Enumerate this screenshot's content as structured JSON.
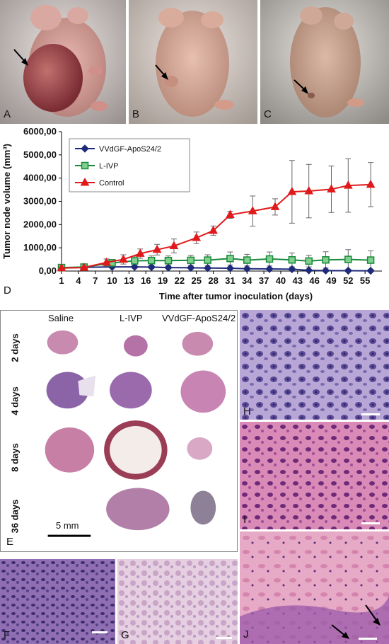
{
  "panel_labels": {
    "a": "A",
    "b": "B",
    "c": "C",
    "d": "D",
    "e": "E",
    "f": "F",
    "g": "G",
    "h": "H",
    "i": "I",
    "j": "J"
  },
  "panel_e": {
    "columns": [
      "Saline",
      "L-IVP",
      "VVdGF-ApoS24/2"
    ],
    "rows": [
      "2 days",
      "4 days",
      "8 days",
      "36 days"
    ],
    "scale_bar": "5 mm"
  },
  "colors": {
    "vvdgf": "#1f2a7a",
    "livp": "#1a8a3a",
    "control": "#e0191b",
    "error": "#666666"
  },
  "chart_data": {
    "type": "line",
    "xlabel": "Time after tumor inoculation (days)",
    "ylabel": "Tumor node volume (mm³)",
    "ylim": [
      0,
      6000
    ],
    "xlim": [
      1,
      58
    ],
    "x_ticks": [
      1,
      4,
      7,
      10,
      13,
      16,
      19,
      22,
      25,
      28,
      31,
      34,
      37,
      40,
      43,
      46,
      49,
      52,
      55
    ],
    "y_ticks": [
      0,
      1000,
      2000,
      3000,
      4000,
      5000,
      6000
    ],
    "y_tick_labels": [
      "0,00",
      "1000,00",
      "2000,00",
      "3000,00",
      "4000,00",
      "5000,00",
      "6000,00"
    ],
    "legend_position": "top-left",
    "series": [
      {
        "name": "VVdGF-ApoS24/2",
        "marker": "diamond",
        "x": [
          1,
          5,
          10,
          14,
          17,
          20,
          24,
          27,
          31,
          34,
          38,
          42,
          45,
          48,
          52,
          56
        ],
        "values": [
          150,
          160,
          180,
          180,
          170,
          150,
          140,
          130,
          120,
          100,
          90,
          80,
          30,
          20,
          15,
          10
        ],
        "errors": [
          40,
          40,
          50,
          60,
          60,
          50,
          50,
          40,
          40,
          40,
          30,
          30,
          20,
          10,
          10,
          10
        ]
      },
      {
        "name": "L-IVP",
        "marker": "square",
        "x": [
          1,
          5,
          10,
          14,
          17,
          20,
          24,
          27,
          31,
          34,
          38,
          42,
          45,
          48,
          52,
          56
        ],
        "values": [
          150,
          170,
          350,
          440,
          450,
          450,
          460,
          470,
          540,
          470,
          520,
          480,
          430,
          480,
          500,
          470
        ],
        "errors": [
          60,
          80,
          150,
          200,
          200,
          200,
          220,
          230,
          280,
          250,
          300,
          300,
          250,
          350,
          420,
          400
        ]
      },
      {
        "name": "Control",
        "marker": "triangle",
        "x": [
          1,
          5,
          9,
          12,
          15,
          18,
          21,
          25,
          28,
          31,
          35,
          39,
          42,
          45,
          49,
          52,
          56
        ],
        "values": [
          130,
          150,
          370,
          500,
          750,
          920,
          1080,
          1430,
          1740,
          2420,
          2580,
          2760,
          3410,
          3440,
          3520,
          3680,
          3720
        ],
        "errors": [
          50,
          80,
          150,
          200,
          200,
          230,
          300,
          250,
          200,
          150,
          650,
          350,
          1350,
          1150,
          1000,
          1150,
          950
        ]
      }
    ]
  }
}
